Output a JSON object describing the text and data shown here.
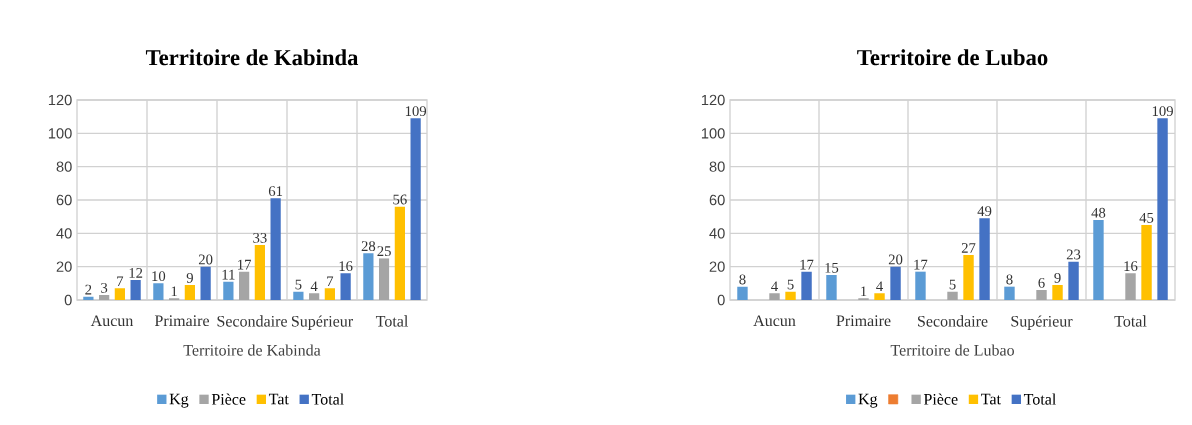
{
  "chart_data": [
    {
      "type": "bar",
      "title": "Territoire de Kabinda",
      "xlabel": "Territoire de Kabinda",
      "categories": [
        "Aucun",
        "Primaire",
        "Secondaire",
        "Supérieur",
        "Total"
      ],
      "series": [
        {
          "name": "Kg",
          "color": "#5b9bd5",
          "values": [
            2,
            10,
            11,
            5,
            28
          ]
        },
        {
          "name": "Pièce",
          "color": "#a5a5a5",
          "values": [
            3,
            1,
            17,
            4,
            25
          ]
        },
        {
          "name": "Tat",
          "color": "#ffc000",
          "values": [
            7,
            9,
            33,
            7,
            56
          ]
        },
        {
          "name": "Total",
          "color": "#4472c4",
          "values": [
            12,
            20,
            61,
            16,
            109
          ]
        }
      ],
      "ylim": [
        0,
        120
      ],
      "yticks": [
        0,
        20,
        40,
        60,
        80,
        100,
        120
      ],
      "grid": true,
      "legend": "bottom",
      "data_labels": true
    },
    {
      "type": "bar",
      "title": "Territoire de Lubao",
      "xlabel": "Territoire de Lubao",
      "categories": [
        "Aucun",
        "Primaire",
        "Secondaire",
        "Supérieur",
        "Total"
      ],
      "series": [
        {
          "name": "Kg",
          "color": "#5b9bd5",
          "values": [
            8,
            15,
            17,
            8,
            48
          ]
        },
        {
          "color": "#ed7d31",
          "values": [
            null,
            null,
            null,
            null,
            null
          ]
        },
        {
          "name": "Pièce",
          "color": "#a5a5a5",
          "values": [
            4,
            1,
            5,
            6,
            16
          ]
        },
        {
          "name": "Tat",
          "color": "#ffc000",
          "values": [
            5,
            4,
            27,
            9,
            45
          ]
        },
        {
          "name": "Total",
          "color": "#4472c4",
          "values": [
            17,
            20,
            49,
            23,
            109
          ]
        }
      ],
      "ylim": [
        0,
        120
      ],
      "yticks": [
        0,
        20,
        40,
        60,
        80,
        100,
        120
      ],
      "grid": true,
      "legend": "bottom",
      "data_labels": true
    }
  ]
}
